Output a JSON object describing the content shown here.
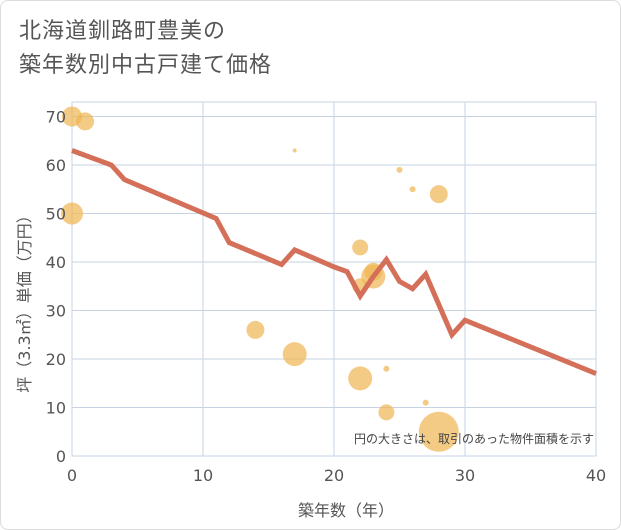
{
  "chart_data": {
    "type": "scatter",
    "title_lines": [
      "北海道釧路町豊美の",
      "築年数別中古戸建て価格"
    ],
    "xlabel": "築年数（年）",
    "ylabel": "坪（3.3㎡）単価（万円）",
    "xlim": [
      0,
      40
    ],
    "ylim": [
      0,
      73
    ],
    "xticks": [
      0,
      10,
      20,
      30,
      40
    ],
    "yticks": [
      0,
      10,
      20,
      30,
      40,
      50,
      60,
      70
    ],
    "grid": true,
    "note": "円の大きさは、取引のあった物件面積を示す",
    "colors": {
      "scatter": "#f0b550",
      "line": "#d4705a",
      "grid": "#c7d3e3",
      "plot_bg": "#ffffff"
    },
    "scatter": [
      {
        "x": 0,
        "y": 70,
        "size": 10
      },
      {
        "x": 1,
        "y": 69,
        "size": 9
      },
      {
        "x": 0,
        "y": 50,
        "size": 11
      },
      {
        "x": 17,
        "y": 63,
        "size": 2
      },
      {
        "x": 25,
        "y": 59,
        "size": 3
      },
      {
        "x": 26,
        "y": 55,
        "size": 3
      },
      {
        "x": 28,
        "y": 54,
        "size": 9
      },
      {
        "x": 22,
        "y": 43,
        "size": 8
      },
      {
        "x": 23,
        "y": 38,
        "size": 9
      },
      {
        "x": 23,
        "y": 37,
        "size": 12
      },
      {
        "x": 22,
        "y": 35,
        "size": 8
      },
      {
        "x": 14,
        "y": 26,
        "size": 9
      },
      {
        "x": 17,
        "y": 21,
        "size": 12
      },
      {
        "x": 22,
        "y": 16,
        "size": 12
      },
      {
        "x": 24,
        "y": 18,
        "size": 3
      },
      {
        "x": 27,
        "y": 11,
        "size": 3
      },
      {
        "x": 24,
        "y": 9,
        "size": 8
      },
      {
        "x": 28,
        "y": 5,
        "size": 20
      }
    ],
    "series": [
      {
        "name": "trend",
        "x": [
          0,
          3,
          4,
          11,
          12,
          16,
          17,
          20,
          21,
          22,
          23,
          24,
          25,
          26,
          27,
          29,
          30,
          40
        ],
        "y": [
          63,
          60,
          57,
          49,
          44,
          39.5,
          42.5,
          39,
          38,
          33,
          37,
          40.5,
          36,
          34.5,
          37.5,
          25,
          28,
          17
        ]
      }
    ]
  }
}
